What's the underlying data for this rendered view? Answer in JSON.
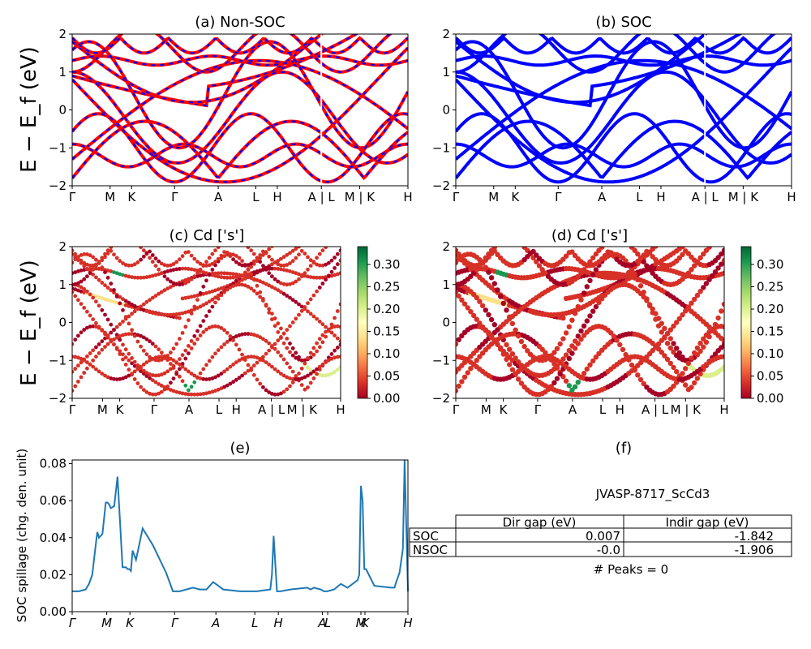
{
  "panels": {
    "a": {
      "title": "(a) Non-SOC"
    },
    "b": {
      "title": "(b) SOC"
    },
    "c": {
      "title": "(c)  Cd ['s']"
    },
    "d": {
      "title": "(d) Cd ['s']"
    },
    "e": {
      "title": "(e)"
    },
    "f": {
      "title": "(f)"
    }
  },
  "band_ylabel": "E − E_f (eV)",
  "band_yticks": [
    "2",
    "1",
    "0",
    "−1",
    "−2"
  ],
  "kpath": [
    "Γ",
    "M",
    "K",
    "Γ",
    "A",
    "L",
    "H",
    "A | L",
    "M | K",
    "H"
  ],
  "kpath_c": [
    "Γ",
    "M",
    "K",
    "Γ",
    "A",
    "L",
    "H",
    "A | L",
    "M | K",
    "H"
  ],
  "kpath_e": [
    "Γ",
    "M",
    "K",
    "Γ",
    "A",
    "L",
    "H",
    "A",
    "L",
    "M",
    "K",
    "H"
  ],
  "colorbar": {
    "ticks": [
      "0.30",
      "0.25",
      "0.20",
      "0.15",
      "0.10",
      "0.05",
      "0.00"
    ],
    "colormap": "RdYlGn",
    "range": [
      0.0,
      0.34
    ]
  },
  "colors": {
    "nsoc_band": "#ff0000",
    "soc_band": "#0000ff",
    "spillage_line": "#1f77b4"
  },
  "spillage": {
    "ylabel": "SOC spillage (chg. den. unit)",
    "yticks": [
      "0.08",
      "0.06",
      "0.04",
      "0.02",
      "0.00"
    ]
  },
  "info": {
    "material": "JVASP-8717_ScCd3",
    "col1": "Dir gap (eV)",
    "col2": "Indir gap (eV)",
    "row1_label": "SOC",
    "row1_dir": "0.007",
    "row1_indir": "-1.842",
    "row2_label": "NSOC",
    "row2_dir": "-0.0",
    "row2_indir": "-1.906",
    "peaks": "# Peaks = 0"
  },
  "chart_data": [
    {
      "type": "line",
      "title": "(a) Non-SOC",
      "ylabel": "E − E_f (eV)",
      "ylim": [
        -2,
        2
      ],
      "x_ticks": [
        "Γ",
        "M",
        "K",
        "Γ",
        "A",
        "L",
        "H",
        "A | L",
        "M | K",
        "H"
      ],
      "series": [
        {
          "values": [
            0.9,
            0.5,
            0.1,
            -0.3,
            -0.8,
            -1.3,
            -1.2,
            -0.6,
            0.1,
            0.7,
            1.2,
            1.5,
            1.7
          ]
        },
        {
          "values": [
            1.8,
            1.5,
            1.1,
            0.6,
            0.2,
            0.0,
            0.2,
            0.8,
            1.4,
            1.8,
            1.9,
            2.0,
            2.0
          ]
        },
        {
          "values": [
            -1.3,
            -1.2,
            -1.0,
            -0.6,
            -0.2,
            0.3,
            0.9,
            1.3,
            1.2,
            1.0,
            0.8,
            0.5,
            0.3
          ]
        },
        {
          "values": [
            1.3,
            1.4,
            1.4,
            1.3,
            1.2,
            1.25,
            1.3,
            1.3,
            1.3,
            1.3,
            1.25,
            1.2,
            1.2
          ]
        },
        {
          "values": [
            0.8,
            0.2,
            -0.5,
            -1.2,
            -1.6,
            -1.9,
            -1.6,
            -1.0,
            -0.3,
            0.5,
            1.0,
            1.4,
            1.6
          ]
        }
      ]
    },
    {
      "type": "line",
      "title": "(b) SOC",
      "ylabel": "",
      "ylim": [
        -2,
        2
      ],
      "x_ticks": [
        "Γ",
        "M",
        "K",
        "Γ",
        "A",
        "L",
        "H",
        "A | L",
        "M | K",
        "H"
      ],
      "series": [
        {
          "values": [
            0.9,
            0.5,
            0.1,
            -0.3,
            -0.8,
            -1.3,
            -1.2,
            -0.6,
            0.1,
            0.7,
            1.2,
            1.5,
            1.7
          ]
        },
        {
          "values": [
            1.8,
            1.5,
            1.1,
            0.6,
            0.2,
            0.0,
            0.2,
            0.8,
            1.4,
            1.8,
            1.9,
            2.0,
            2.0
          ]
        },
        {
          "values": [
            -1.3,
            -1.2,
            -1.0,
            -0.6,
            -0.2,
            0.3,
            0.9,
            1.3,
            1.2,
            1.0,
            0.8,
            0.5,
            0.3
          ]
        },
        {
          "values": [
            1.3,
            1.4,
            1.4,
            1.3,
            1.2,
            1.25,
            1.3,
            1.3,
            1.3,
            1.3,
            1.25,
            1.2,
            1.2
          ]
        },
        {
          "values": [
            0.8,
            0.2,
            -0.5,
            -1.2,
            -1.6,
            -1.9,
            -1.6,
            -1.0,
            -0.3,
            0.5,
            1.0,
            1.4,
            1.6
          ]
        }
      ]
    },
    {
      "type": "scatter",
      "title": "(c)  Cd ['s']",
      "ylim": [
        -2,
        2
      ],
      "colorbar_range": [
        0.0,
        0.34
      ],
      "note_values": "band energies with Cd s-weight as color",
      "series": [
        {
          "x": [
            0,
            1,
            2,
            3,
            4,
            5,
            6,
            7,
            8,
            9,
            10,
            11,
            12
          ],
          "y": [
            0.9,
            0.5,
            0.1,
            -0.3,
            -0.8,
            -1.3,
            -1.2,
            -0.6,
            0.1,
            0.7,
            1.2,
            1.5,
            1.7
          ],
          "c": [
            0.02,
            0.05,
            0.12,
            0.15,
            0.05,
            0.02,
            0.03,
            0.06,
            0.02,
            0.01,
            0.02,
            0.02,
            0.01
          ]
        },
        {
          "x": [
            0,
            1,
            2,
            3,
            4,
            5,
            6,
            7,
            8,
            9,
            10,
            11,
            12
          ],
          "y": [
            -1.3,
            -1.2,
            -1.0,
            -0.6,
            -0.2,
            0.3,
            0.9,
            1.3,
            1.2,
            1.0,
            0.8,
            0.5,
            0.3
          ],
          "c": [
            0.08,
            0.12,
            0.18,
            0.1,
            0.05,
            0.02,
            0.01,
            0.01,
            0.02,
            0.03,
            0.02,
            0.01,
            0.01
          ]
        },
        {
          "x": [
            0,
            1,
            2,
            3,
            4,
            5,
            6,
            7,
            8,
            9,
            10,
            11,
            12
          ],
          "y": [
            1.3,
            1.4,
            1.4,
            1.3,
            1.2,
            1.25,
            1.3,
            1.3,
            1.3,
            1.3,
            1.25,
            1.2,
            1.2
          ],
          "c": [
            0.15,
            0.2,
            0.3,
            0.05,
            0.02,
            0.02,
            0.02,
            0.01,
            0.02,
            0.02,
            0.08,
            0.25,
            0.02
          ]
        }
      ]
    },
    {
      "type": "scatter",
      "title": "(d) Cd ['s']",
      "ylim": [
        -2,
        2
      ],
      "colorbar_range": [
        0.0,
        0.34
      ],
      "series": [
        {
          "x": [
            0,
            1,
            2,
            3,
            4,
            5,
            6,
            7,
            8,
            9,
            10,
            11,
            12
          ],
          "y": [
            0.9,
            0.5,
            0.1,
            -0.3,
            -0.8,
            -1.3,
            -1.2,
            -0.6,
            0.1,
            0.7,
            1.2,
            1.5,
            1.7
          ],
          "c": [
            0.02,
            0.05,
            0.12,
            0.15,
            0.05,
            0.02,
            0.03,
            0.06,
            0.02,
            0.01,
            0.02,
            0.02,
            0.01
          ]
        },
        {
          "x": [
            0,
            1,
            2,
            3,
            4,
            5,
            6,
            7,
            8,
            9,
            10,
            11,
            12
          ],
          "y": [
            -1.3,
            -1.2,
            -1.0,
            -0.6,
            -0.2,
            0.3,
            0.9,
            1.3,
            1.2,
            1.0,
            0.8,
            0.5,
            0.3
          ],
          "c": [
            0.08,
            0.12,
            0.18,
            0.1,
            0.05,
            0.02,
            0.01,
            0.01,
            0.02,
            0.03,
            0.02,
            0.01,
            0.01
          ]
        },
        {
          "x": [
            0,
            1,
            2,
            3,
            4,
            5,
            6,
            7,
            8,
            9,
            10,
            11,
            12
          ],
          "y": [
            1.3,
            1.4,
            1.4,
            1.3,
            1.2,
            1.25,
            1.3,
            1.3,
            1.3,
            1.3,
            1.25,
            1.2,
            1.2
          ],
          "c": [
            0.15,
            0.2,
            0.3,
            0.05,
            0.02,
            0.02,
            0.02,
            0.01,
            0.02,
            0.02,
            0.08,
            0.25,
            0.02
          ]
        }
      ]
    },
    {
      "type": "line",
      "title": "(e)",
      "ylabel": "SOC spillage (chg. den. unit)",
      "ylim": [
        0,
        0.082
      ],
      "x_ticks": [
        "Γ",
        "M",
        "K",
        "Γ",
        "A",
        "L",
        "H",
        "A",
        "L",
        "M",
        "K",
        "H"
      ],
      "x": [
        0,
        0.02,
        0.04,
        0.05,
        0.06,
        0.07,
        0.075,
        0.08,
        0.09,
        0.1,
        0.105,
        0.11,
        0.115,
        0.125,
        0.135,
        0.15,
        0.155,
        0.16,
        0.165,
        0.17,
        0.175,
        0.18,
        0.19,
        0.21,
        0.24,
        0.28,
        0.3,
        0.31,
        0.32,
        0.36,
        0.38,
        0.39,
        0.4,
        0.42,
        0.45,
        0.5,
        0.55,
        0.59,
        0.595,
        0.6,
        0.61,
        0.62,
        0.65,
        0.7,
        0.71,
        0.72,
        0.74,
        0.75,
        0.76,
        0.78,
        0.8,
        0.82,
        0.85,
        0.855,
        0.86,
        0.865,
        0.87,
        0.875,
        0.9,
        0.95,
        0.96,
        0.965,
        0.975,
        0.985,
        0.99,
        1.0
      ],
      "values": [
        0.011,
        0.011,
        0.012,
        0.015,
        0.02,
        0.036,
        0.043,
        0.04,
        0.042,
        0.059,
        0.059,
        0.058,
        0.056,
        0.057,
        0.073,
        0.024,
        0.024,
        0.024,
        0.023,
        0.023,
        0.022,
        0.033,
        0.028,
        0.045,
        0.036,
        0.021,
        0.011,
        0.011,
        0.011,
        0.013,
        0.012,
        0.012,
        0.012,
        0.016,
        0.012,
        0.011,
        0.011,
        0.012,
        0.02,
        0.041,
        0.011,
        0.011,
        0.012,
        0.013,
        0.012,
        0.013,
        0.012,
        0.011,
        0.011,
        0.012,
        0.015,
        0.013,
        0.017,
        0.02,
        0.068,
        0.06,
        0.023,
        0.023,
        0.014,
        0.013,
        0.013,
        0.016,
        0.021,
        0.034,
        0.082,
        0.011
      ]
    },
    {
      "type": "table",
      "title": "(f)",
      "columns": [
        "",
        "Dir gap (eV)",
        "Indir gap (eV)"
      ],
      "rows": [
        [
          "SOC",
          "0.007",
          "-1.842"
        ],
        [
          "NSOC",
          "-0.0",
          "-1.906"
        ]
      ]
    }
  ]
}
